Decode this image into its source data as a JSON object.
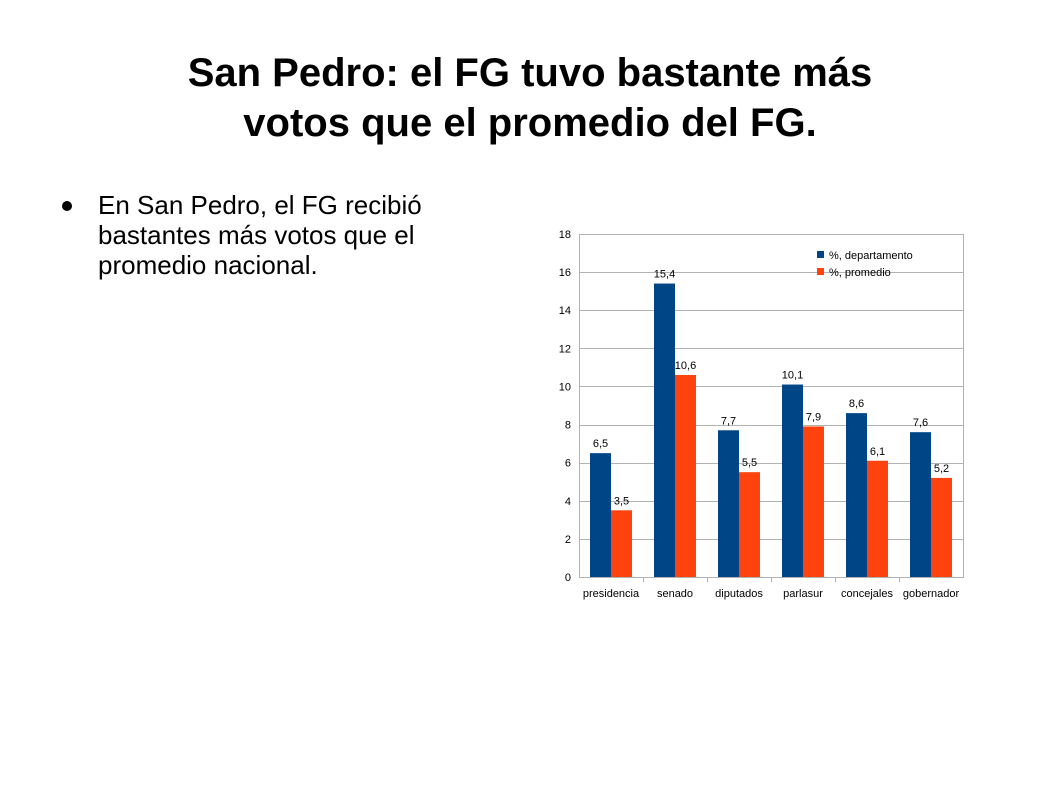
{
  "slide": {
    "title_line1": "San Pedro: el FG tuvo bastante más",
    "title_line2": "votos que el promedio del FG.",
    "bullets": [
      "En San Pedro, el FG recibió bastantes más votos que el promedio nacional."
    ]
  },
  "chart_data": {
    "type": "bar",
    "categories": [
      "presidencia",
      "senado",
      "diputados",
      "parlasur",
      "concejales",
      "gobernador"
    ],
    "series": [
      {
        "name": "%, departamento",
        "values": [
          6.5,
          15.4,
          7.7,
          10.1,
          8.6,
          7.6
        ],
        "labels": [
          "6,5",
          "15,4",
          "7,7",
          "10,1",
          "8,6",
          "7,6"
        ],
        "color": "#004586"
      },
      {
        "name": "%, promedio",
        "values": [
          3.5,
          10.6,
          5.5,
          7.9,
          6.1,
          5.2
        ],
        "labels": [
          "3,5",
          "10,6",
          "5,5",
          "7,9",
          "6,1",
          "5,2"
        ],
        "color": "#ff420e"
      }
    ],
    "ylim": [
      0,
      18
    ],
    "yticks": [
      0,
      2,
      4,
      6,
      8,
      10,
      12,
      14,
      16,
      18
    ],
    "grid": true,
    "legend": "top-right",
    "title": "",
    "xlabel": "",
    "ylabel": ""
  }
}
